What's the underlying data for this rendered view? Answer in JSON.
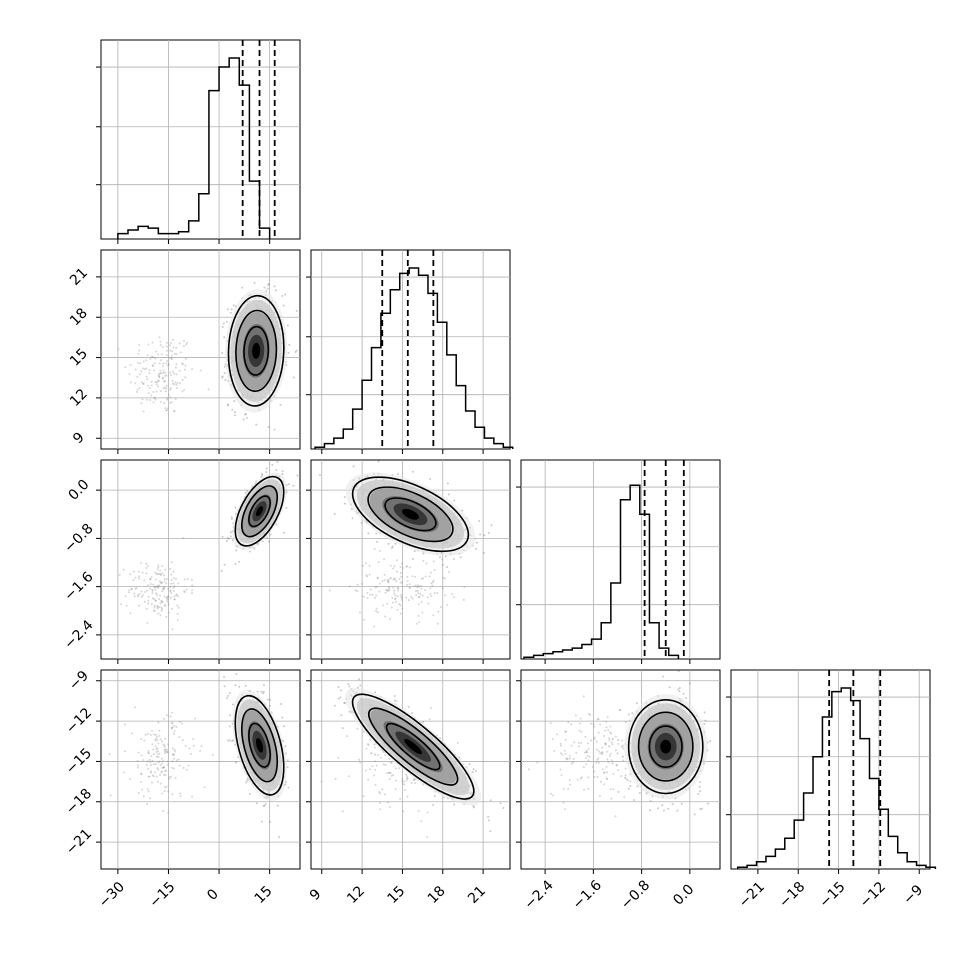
{
  "chart_data": {
    "type": "corner",
    "params": [
      {
        "range": [
          -35,
          24
        ],
        "ticks": [
          {
            "v": -30,
            "label": "−30"
          },
          {
            "v": -15,
            "label": "−15"
          },
          {
            "v": 0,
            "label": "0"
          },
          {
            "v": 15,
            "label": "15"
          }
        ],
        "quantiles": [
          7,
          12,
          16.5
        ],
        "hist": {
          "start": -30,
          "width": 3,
          "heights": [
            0.03,
            0.05,
            0.07,
            0.06,
            0.03,
            0.03,
            0.04,
            0.1,
            0.25,
            0.82,
            0.95,
            1.0,
            0.85,
            0.32,
            0.06
          ]
        }
      },
      {
        "range": [
          8.2,
          23
        ],
        "ticks": [
          {
            "v": 9,
            "label": "9"
          },
          {
            "v": 12,
            "label": "12"
          },
          {
            "v": 15,
            "label": "15"
          },
          {
            "v": 18,
            "label": "18"
          },
          {
            "v": 21,
            "label": "21"
          }
        ],
        "quantiles": [
          13.5,
          15.4,
          17.3
        ],
        "hist": {
          "start": 8.5,
          "width": 0.7,
          "heights": [
            0.01,
            0.03,
            0.06,
            0.11,
            0.22,
            0.38,
            0.56,
            0.75,
            0.88,
            0.97,
            1.0,
            0.96,
            0.86,
            0.7,
            0.52,
            0.35,
            0.21,
            0.12,
            0.06,
            0.03,
            0.01
          ]
        }
      },
      {
        "range": [
          -2.8,
          0.5
        ],
        "ticks": [
          {
            "v": -2.4,
            "label": "−2.4"
          },
          {
            "v": -1.6,
            "label": "−1.6"
          },
          {
            "v": -0.8,
            "label": "−0.8"
          },
          {
            "v": 0.0,
            "label": "0.0"
          }
        ],
        "quantiles": [
          -0.75,
          -0.4,
          -0.1
        ],
        "hist": {
          "start": -2.75,
          "width": 0.16,
          "heights": [
            0.01,
            0.02,
            0.03,
            0.04,
            0.05,
            0.06,
            0.08,
            0.11,
            0.2,
            0.42,
            0.88,
            0.96,
            0.8,
            0.2,
            0.06,
            0.02
          ]
        }
      },
      {
        "range": [
          -23,
          -8.2
        ],
        "ticks": [
          {
            "v": -21,
            "label": "−21"
          },
          {
            "v": -18,
            "label": "−18"
          },
          {
            "v": -15,
            "label": "−15"
          },
          {
            "v": -12,
            "label": "−12"
          },
          {
            "v": -9,
            "label": "−9"
          }
        ],
        "quantiles": [
          -15.7,
          -13.9,
          -11.9
        ],
        "hist": {
          "start": -22.5,
          "width": 0.7,
          "heights": [
            0.01,
            0.02,
            0.04,
            0.07,
            0.11,
            0.17,
            0.27,
            0.42,
            0.62,
            0.84,
            0.98,
            1.0,
            0.93,
            0.72,
            0.5,
            0.33,
            0.18,
            0.09,
            0.04,
            0.02,
            0.01
          ]
        }
      }
    ],
    "pairs": [
      {
        "row": 1,
        "col": 0,
        "main": {
          "mean": [
            11,
            15.5
          ],
          "sd": [
            4,
            2.0
          ],
          "corr": 0.05
        },
        "tail": {
          "mean": [
            -17,
            13.8
          ],
          "sd": [
            5,
            1.6
          ],
          "corr": 0.0
        },
        "contours": [
          0.9,
          1.5,
          2.05
        ]
      },
      {
        "row": 2,
        "col": 0,
        "main": {
          "mean": [
            12,
            -0.35
          ],
          "sd": [
            3.5,
            0.28
          ],
          "corr": 0.55
        },
        "tail": {
          "mean": [
            -18,
            -1.65
          ],
          "sd": [
            4.5,
            0.25
          ],
          "corr": 0.0
        },
        "contours": [
          0.9,
          1.5,
          2.05
        ]
      },
      {
        "row": 2,
        "col": 1,
        "main": {
          "mean": [
            15.6,
            -0.4
          ],
          "sd": [
            2.1,
            0.3
          ],
          "corr": -0.55
        },
        "tail": {
          "mean": [
            15.0,
            -1.6
          ],
          "sd": [
            1.8,
            0.25
          ],
          "corr": 0.0
        },
        "contours": [
          0.9,
          1.5,
          2.05
        ]
      },
      {
        "row": 3,
        "col": 0,
        "main": {
          "mean": [
            12,
            -13.8
          ],
          "sd": [
            3.5,
            1.8
          ],
          "corr": -0.45
        },
        "tail": {
          "mean": [
            -17,
            -14.8
          ],
          "sd": [
            5,
            1.6
          ],
          "corr": 0.0
        },
        "contours": [
          0.9,
          1.5,
          2.05
        ]
      },
      {
        "row": 3,
        "col": 1,
        "main": {
          "mean": [
            15.8,
            -13.9
          ],
          "sd": [
            2.2,
            1.9
          ],
          "corr": -0.85
        },
        "tail": {
          "mean": [
            15.0,
            -15.0
          ],
          "sd": [
            1.8,
            1.6
          ],
          "corr": 0.0
        },
        "contours": [
          0.9,
          1.5,
          2.05
        ]
      },
      {
        "row": 3,
        "col": 2,
        "main": {
          "mean": [
            -0.4,
            -13.9
          ],
          "sd": [
            0.3,
            1.7
          ],
          "corr": 0.0
        },
        "tail": {
          "mean": [
            -1.5,
            -14.5
          ],
          "sd": [
            0.45,
            1.6
          ],
          "corr": 0.0
        },
        "contours": [
          0.9,
          1.5,
          2.05
        ]
      }
    ],
    "colors": {
      "ink": "#000000",
      "points": "#8a8a8a",
      "grid": "#b0b0b0"
    }
  }
}
